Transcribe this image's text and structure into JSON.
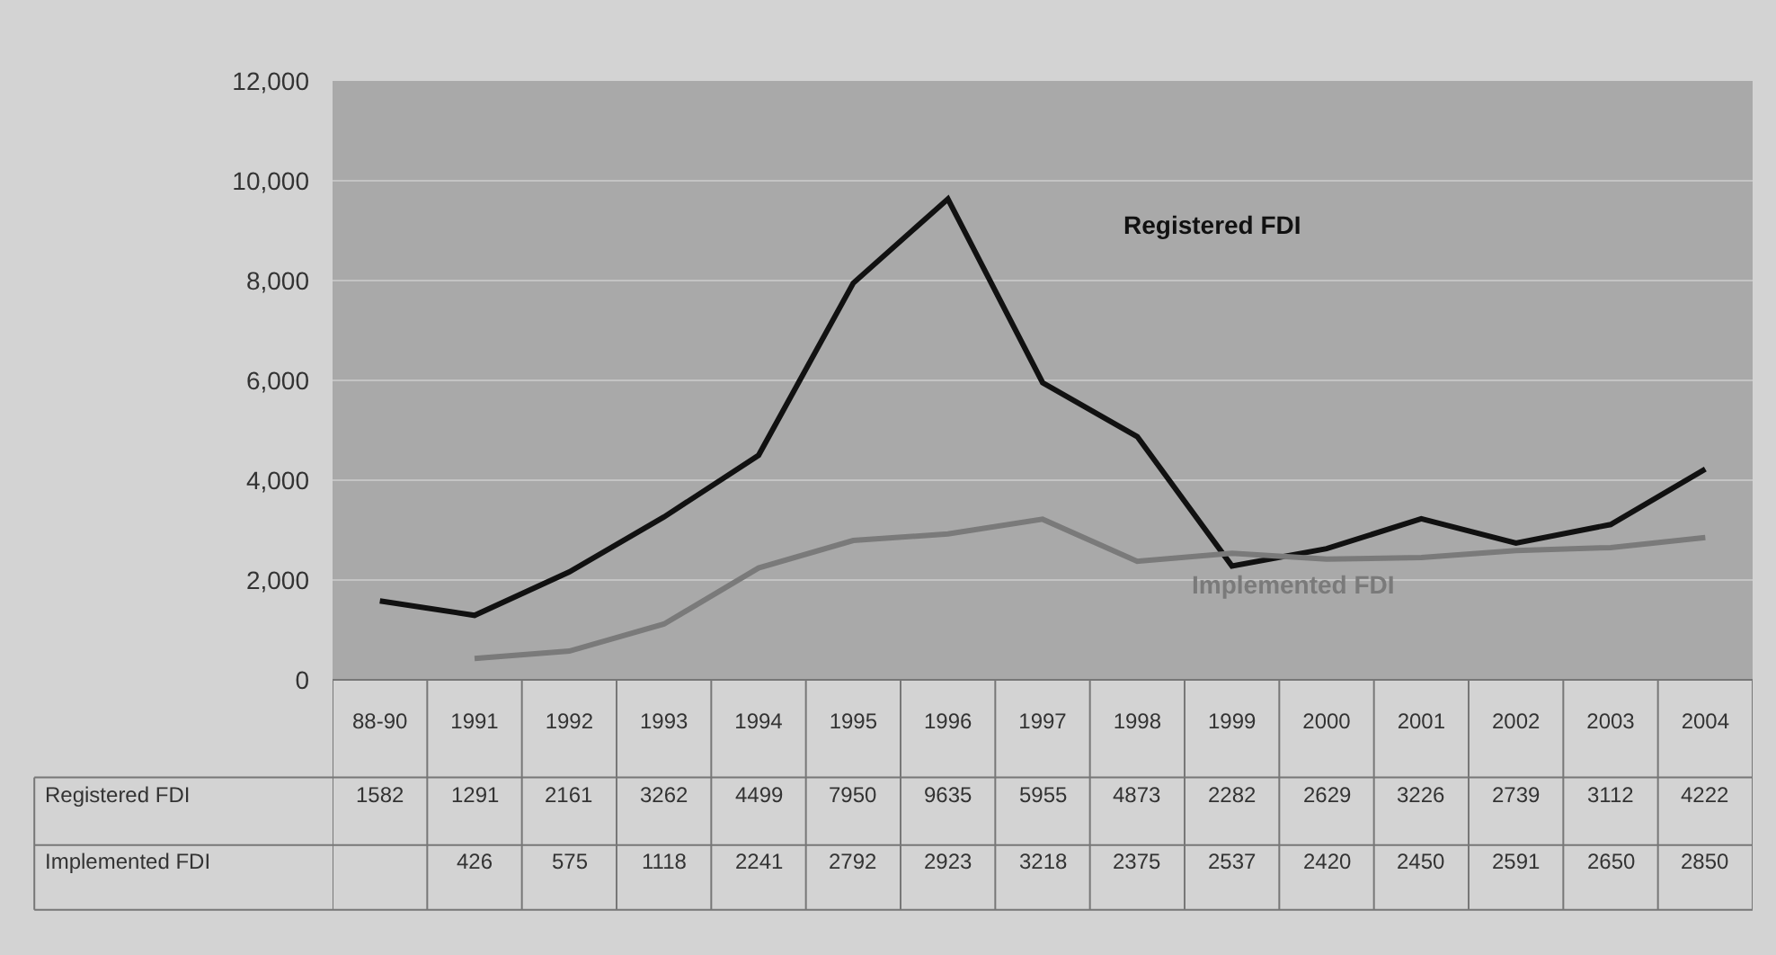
{
  "chart_data": {
    "type": "line",
    "categories": [
      "88-90",
      "1991",
      "1992",
      "1993",
      "1994",
      "1995",
      "1996",
      "1997",
      "1998",
      "1999",
      "2000",
      "2001",
      "2002",
      "2003",
      "2004"
    ],
    "series": [
      {
        "name": "Registered FDI",
        "color": "#111111",
        "values": [
          1582,
          1291,
          2161,
          3262,
          4499,
          7950,
          9635,
          5955,
          4873,
          2282,
          2629,
          3226,
          2739,
          3112,
          4222
        ]
      },
      {
        "name": "Implemented FDI",
        "color": "#7a7a7a",
        "values": [
          null,
          426,
          575,
          1118,
          2241,
          2792,
          2923,
          3218,
          2375,
          2537,
          2420,
          2450,
          2591,
          2650,
          2850
        ]
      }
    ],
    "ylim": [
      0,
      12000
    ],
    "yticks": [
      {
        "value": 0,
        "label": "0"
      },
      {
        "value": 2000,
        "label": "2,000"
      },
      {
        "value": 4000,
        "label": "4,000"
      },
      {
        "value": 6000,
        "label": "6,000"
      },
      {
        "value": 8000,
        "label": "8,000"
      },
      {
        "value": 10000,
        "label": "10,000"
      },
      {
        "value": 12000,
        "label": "12,000"
      }
    ],
    "grid": "y",
    "legend": false,
    "marker": "none",
    "line_style": "solid",
    "data_labels": true
  }
}
